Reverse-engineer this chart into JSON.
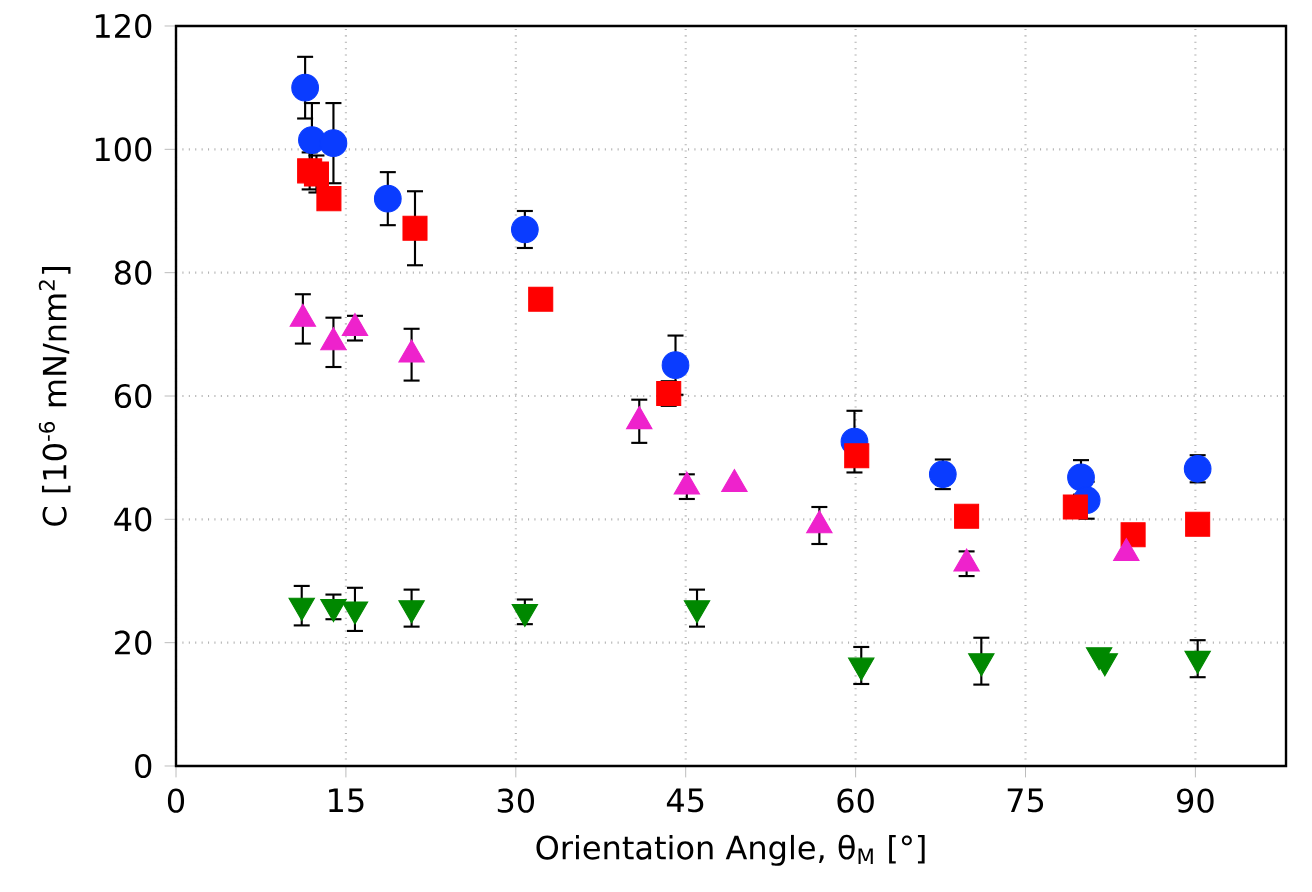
{
  "chart_data": {
    "type": "scatter",
    "xlabel": "Orientation Angle, θ$_{M}$ [°]",
    "ylabel": "C  [10$^{-6}$ mN/nm$^{2}$]",
    "xlim": [
      0,
      98
    ],
    "ylim": [
      0,
      120
    ],
    "xticks": [
      0,
      15,
      30,
      45,
      60,
      75,
      90
    ],
    "yticks": [
      0,
      20,
      40,
      60,
      80,
      100,
      120
    ],
    "grid": true,
    "series": [
      {
        "color": "#0a3cff",
        "marker": "circle",
        "x": [
          11.4,
          12.0,
          13.9,
          18.7,
          30.8,
          44.1,
          59.9,
          67.7,
          79.9,
          80.4,
          90.2
        ],
        "values": [
          110,
          101.5,
          101,
          92,
          87,
          65,
          52.6,
          47.3,
          46.8,
          43.1,
          48.2
        ],
        "errors": [
          5,
          6,
          6.5,
          4.3,
          3,
          4.8,
          5,
          2.4,
          2.8,
          3,
          2.2
        ]
      },
      {
        "color": "#ff0000",
        "marker": "square",
        "x": [
          11.8,
          12.4,
          13.5,
          21.1,
          32.2,
          43.5,
          60.1,
          69.8,
          79.4,
          84.5,
          90.2
        ],
        "values": [
          96.5,
          96,
          92,
          87.2,
          75.7,
          60.4,
          50.3,
          40.5,
          42,
          37.5,
          39.2
        ],
        "errors": [
          3,
          3,
          null,
          6,
          null,
          2,
          null,
          null,
          null,
          null,
          null
        ]
      },
      {
        "color": "#ee22cc",
        "marker": "triangle",
        "x": [
          11.2,
          13.9,
          15.8,
          20.8,
          40.9,
          45.1,
          49.3,
          56.8,
          69.8,
          83.9
        ],
        "values": [
          72.5,
          68.7,
          71,
          66.7,
          55.9,
          45.3,
          45.7,
          39,
          32.8,
          34.5
        ],
        "errors": [
          4,
          4,
          2,
          4.2,
          3.5,
          2,
          null,
          3,
          2,
          null
        ]
      },
      {
        "color": "#008800",
        "marker": "triangle-down",
        "x": [
          11.1,
          13.9,
          15.8,
          20.8,
          30.8,
          46,
          60.5,
          71.1,
          81.5,
          82,
          90.2
        ],
        "values": [
          26,
          25.8,
          25.4,
          25.6,
          25,
          25.6,
          16.3,
          17,
          18,
          17,
          17.4
        ],
        "errors": [
          3.2,
          2,
          3.5,
          3,
          2,
          3,
          3,
          3.8,
          null,
          null,
          3
        ]
      }
    ]
  }
}
